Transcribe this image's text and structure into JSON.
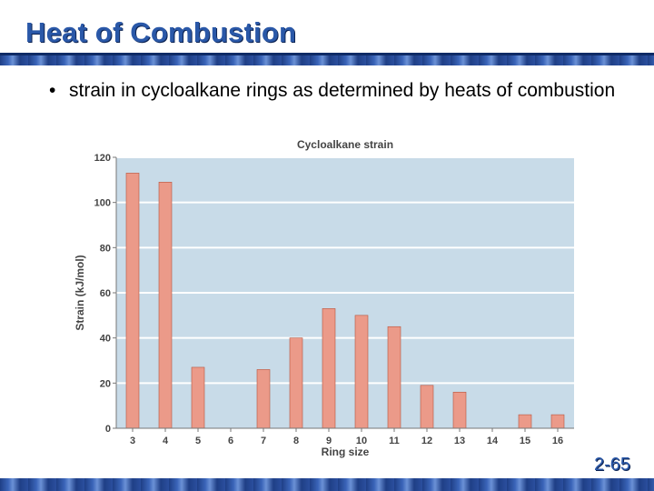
{
  "slide": {
    "title": "Heat of Combustion",
    "bullet": "strain in cycloalkane rings as determined by heats of combustion",
    "bullet_marker": "•",
    "page_number": "2-65"
  },
  "colors": {
    "title": "#2a58a8",
    "plot_bg": "#c8dbe8",
    "bar": "#eb9a89",
    "bar_stroke": "#b6553f"
  },
  "chart_data": {
    "type": "bar",
    "title": "Cycloalkane strain",
    "xlabel": "Ring size",
    "ylabel": "Strain (kJ/mol)",
    "categories": [
      "3",
      "4",
      "5",
      "6",
      "7",
      "8",
      "9",
      "10",
      "11",
      "12",
      "13",
      "14",
      "15",
      "16"
    ],
    "values": [
      113,
      109,
      27,
      0,
      26,
      40,
      53,
      50,
      45,
      19,
      16,
      0,
      6,
      6
    ],
    "ylim": [
      0,
      120
    ],
    "yticks": [
      0,
      20,
      40,
      60,
      80,
      100,
      120
    ],
    "grid": true
  }
}
